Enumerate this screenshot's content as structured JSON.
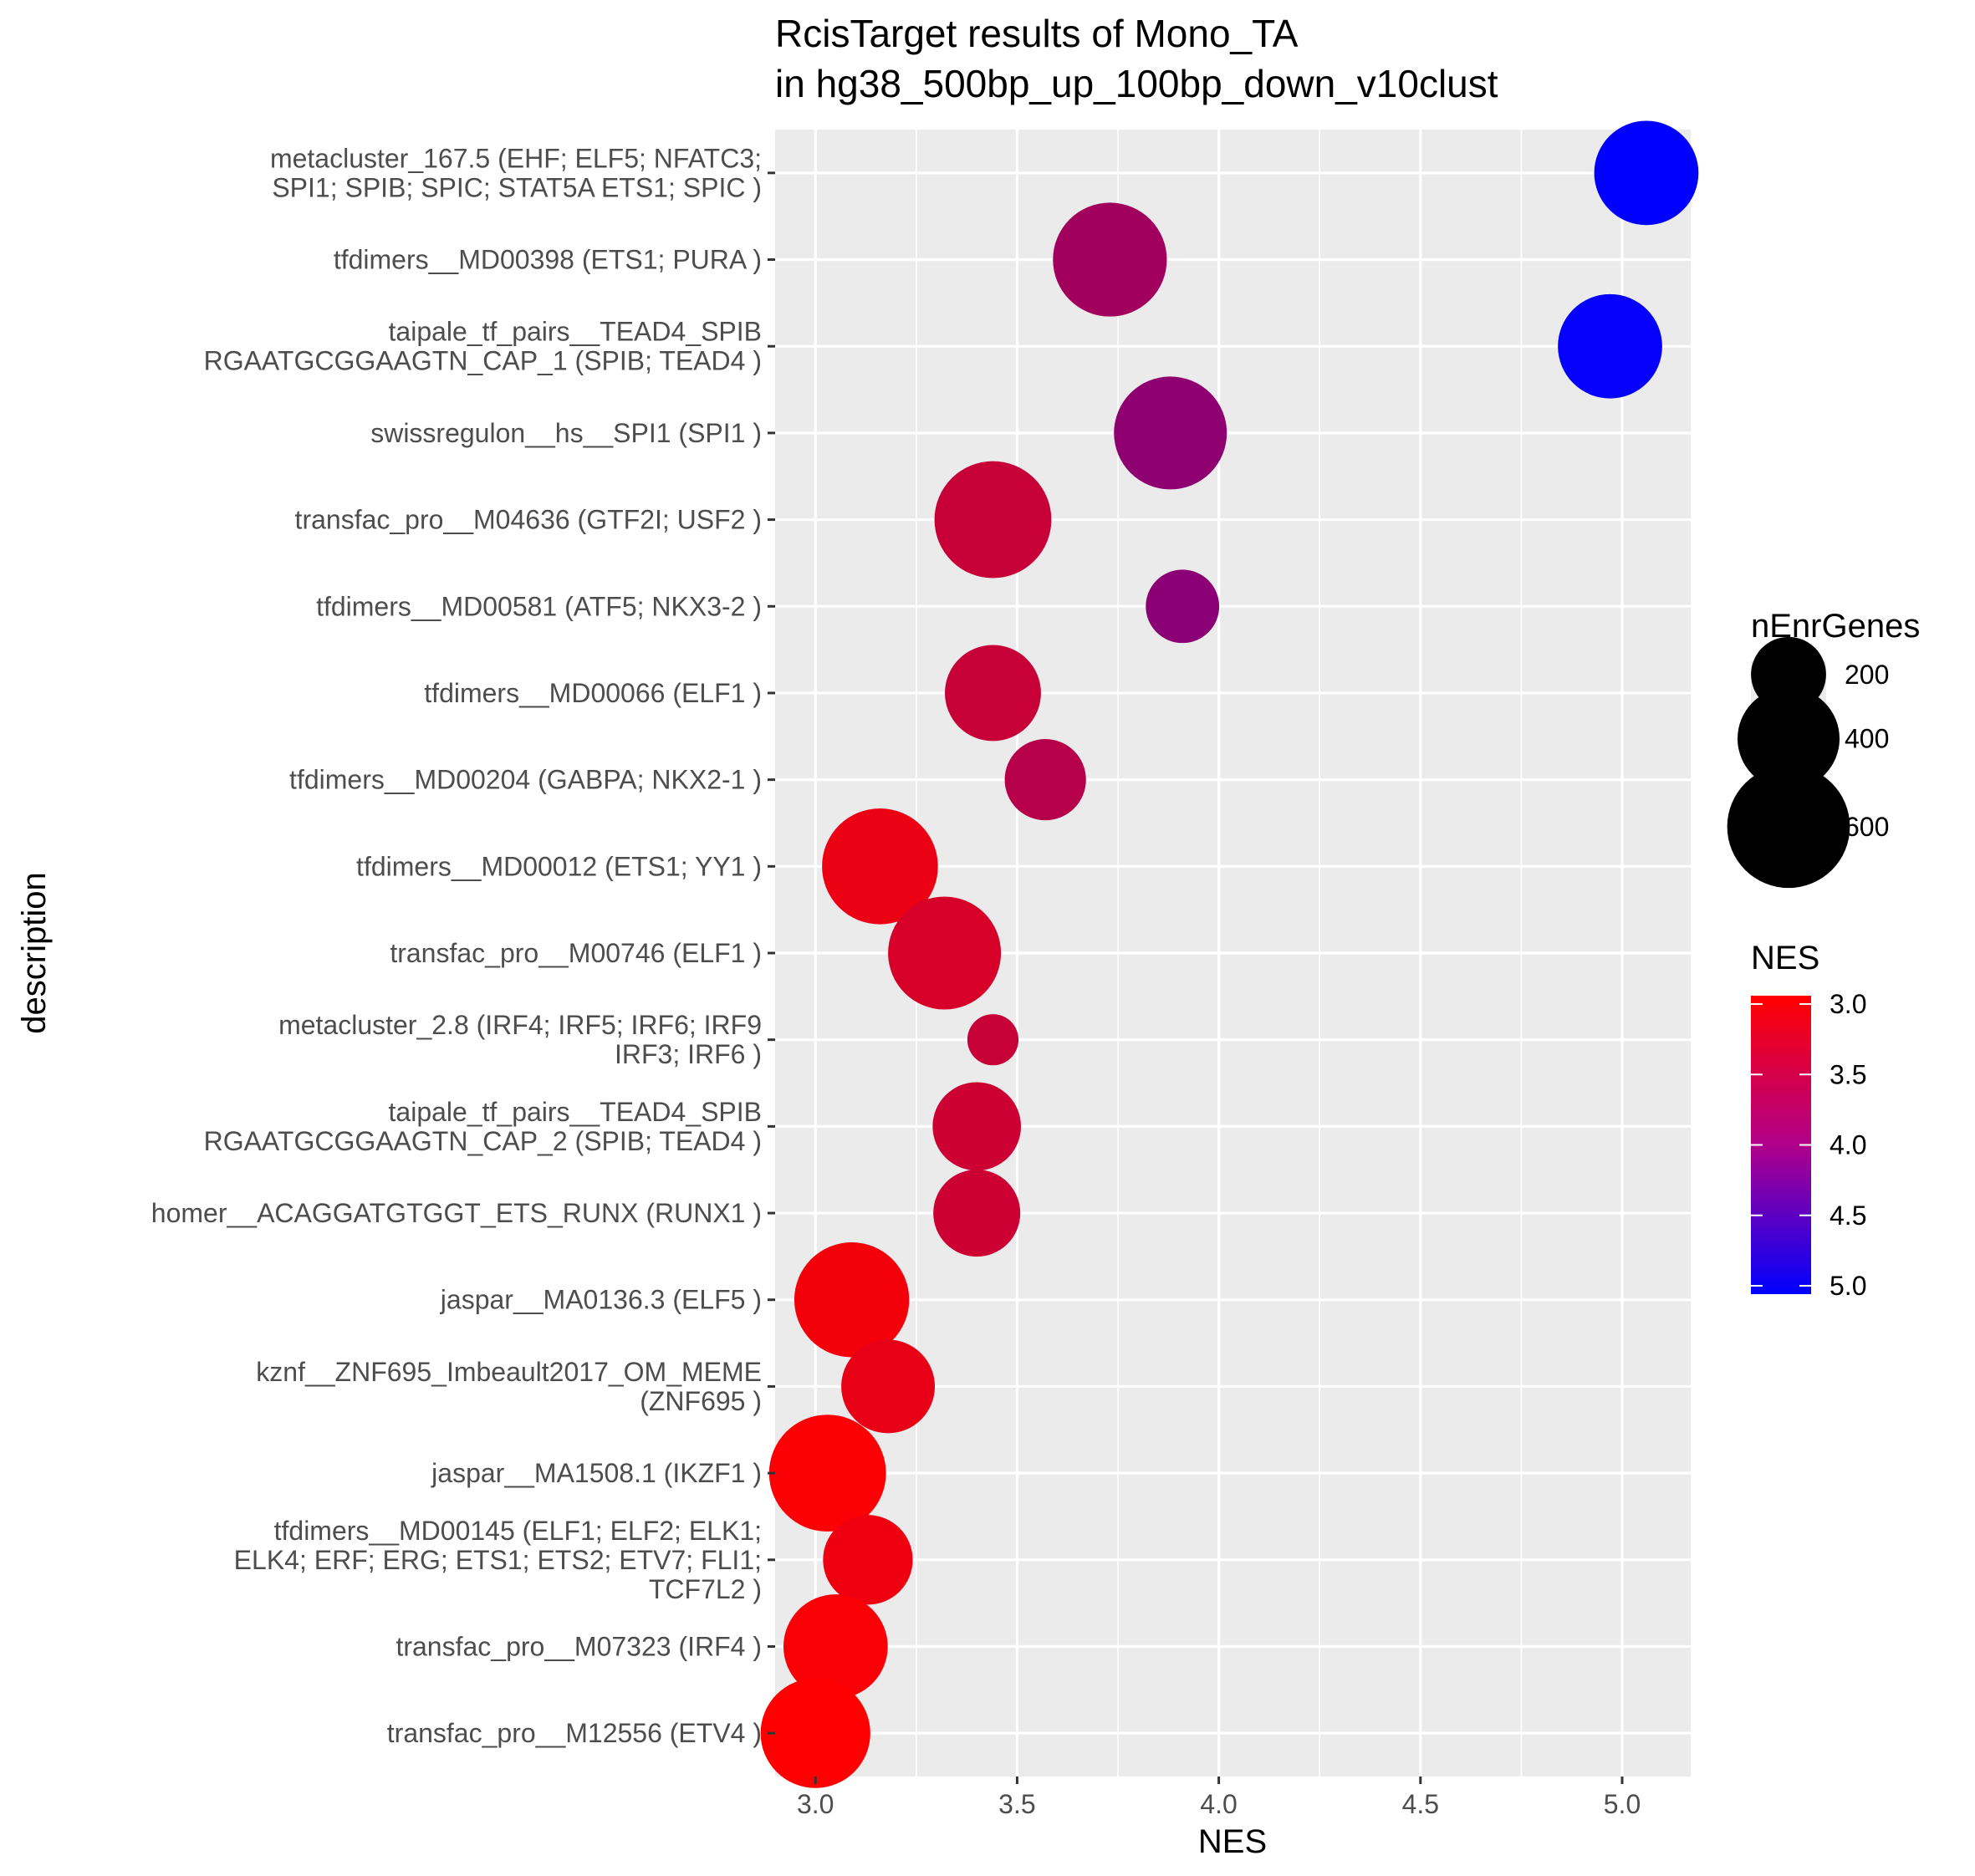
{
  "chart_data": {
    "type": "scatter",
    "title": [
      "RcisTarget results of Mono_TA",
      "in hg38_500bp_up_100bp_down_v10clust"
    ],
    "xlabel": "NES",
    "ylabel": "description",
    "xlim": [
      2.9,
      5.17
    ],
    "x_ticks": [
      "3.0",
      "3.5",
      "4.0",
      "4.5",
      "5.0"
    ],
    "x_tick_values": [
      3.0,
      3.5,
      4.0,
      4.5,
      5.0
    ],
    "grid": true,
    "legend_position": "right",
    "size_legend": {
      "title": "nEnrGenes",
      "labels": [
        "200",
        "400",
        "600"
      ],
      "values": [
        200,
        400,
        600
      ]
    },
    "color_legend": {
      "title": "NES",
      "labels": [
        "3.0",
        "3.5",
        "4.0",
        "4.5",
        "5.0"
      ],
      "values": [
        3.0,
        3.5,
        4.0,
        4.5,
        5.0
      ],
      "low_color": "#ff0000",
      "high_color": "#0000ff"
    },
    "points": [
      {
        "description": [
          "metacluster_167.5 (EHF; ELF5; NFATC3;",
          "SPI1; SPIB; SPIC; STAT5A ETS1; SPIC )"
        ],
        "nes": 5.06,
        "nEnrGenes": 420
      },
      {
        "description": [
          "tfdimers__MD00398 (ETS1; PURA )"
        ],
        "nes": 3.73,
        "nEnrGenes": 510
      },
      {
        "description": [
          "taipale_tf_pairs__TEAD4_SPIB",
          "RGAATGCGGAAGTN_CAP_1 (SPIB; TEAD4 )"
        ],
        "nes": 4.97,
        "nEnrGenes": 420
      },
      {
        "description": [
          "swissregulon__hs__SPI1 (SPI1 )"
        ],
        "nes": 3.88,
        "nEnrGenes": 500
      },
      {
        "description": [
          "transfac_pro__M04636 (GTF2I; USF2 )"
        ],
        "nes": 3.44,
        "nEnrGenes": 540
      },
      {
        "description": [
          "tfdimers__MD00581 (ATF5; NKX3-2 )"
        ],
        "nes": 3.91,
        "nEnrGenes": 190
      },
      {
        "description": [
          "tfdimers__MD00066 (ELF1 )"
        ],
        "nes": 3.44,
        "nEnrGenes": 350
      },
      {
        "description": [
          "tfdimers__MD00204 (GABPA; NKX2-1 )"
        ],
        "nes": 3.57,
        "nEnrGenes": 240
      },
      {
        "description": [
          "tfdimers__MD00012 (ETS1; YY1 )"
        ],
        "nes": 3.16,
        "nEnrGenes": 530
      },
      {
        "description": [
          "transfac_pro__M00746 (ELF1 )"
        ],
        "nes": 3.32,
        "nEnrGenes": 500
      },
      {
        "description": [
          "metacluster_2.8 (IRF4; IRF5; IRF6; IRF9",
          "IRF3; IRF6 )"
        ],
        "nes": 3.44,
        "nEnrGenes": 80
      },
      {
        "description": [
          "taipale_tf_pairs__TEAD4_SPIB",
          "RGAATGCGGAAGTN_CAP_2 (SPIB; TEAD4 )"
        ],
        "nes": 3.4,
        "nEnrGenes": 290
      },
      {
        "description": [
          "homer__ACAGGATGTGGT_ETS_RUNX (RUNX1 )"
        ],
        "nes": 3.4,
        "nEnrGenes": 280
      },
      {
        "description": [
          "jaspar__MA0136.3 (ELF5 )"
        ],
        "nes": 3.09,
        "nEnrGenes": 520
      },
      {
        "description": [
          "kznf__ZNF695_Imbeault2017_OM_MEME",
          "(ZNF695 )"
        ],
        "nes": 3.18,
        "nEnrGenes": 330
      },
      {
        "description": [
          "jaspar__MA1508.1 (IKZF1 )"
        ],
        "nes": 3.03,
        "nEnrGenes": 540
      },
      {
        "description": [
          "tfdimers__MD00145 (ELF1; ELF2; ELK1;",
          "ELK4; ERF; ERG; ETS1; ETS2; ETV7; FLI1;",
          "TCF7L2 )"
        ],
        "nes": 3.13,
        "nEnrGenes": 300
      },
      {
        "description": [
          "transfac_pro__M07323 (IRF4 )"
        ],
        "nes": 3.05,
        "nEnrGenes": 420
      },
      {
        "description": [
          "transfac_pro__M12556 (ETV4 )"
        ],
        "nes": 3.0,
        "nEnrGenes": 470
      }
    ]
  }
}
